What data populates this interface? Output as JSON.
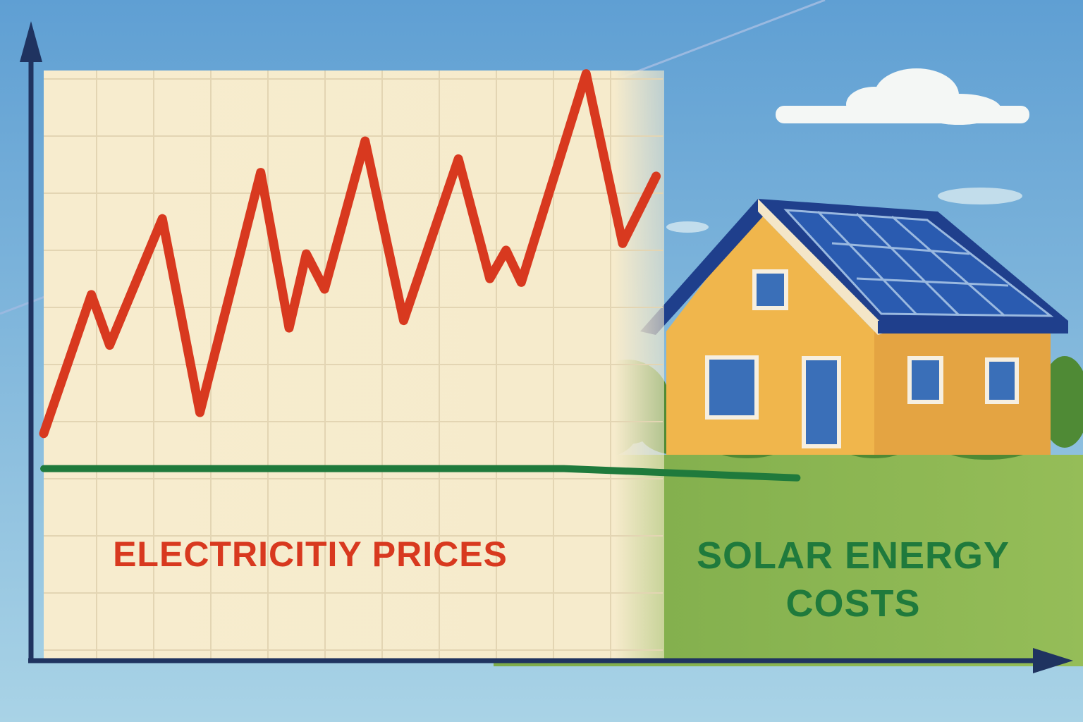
{
  "chart_data": {
    "type": "line",
    "xlim": [
      0,
      100
    ],
    "ylim": [
      0,
      100
    ],
    "series": [
      {
        "name": "ELECTRICITIY PRICES",
        "color": "#d8391f",
        "x": [
          0,
          4.7,
          6.5,
          11.7,
          15.4,
          21.4,
          24.2,
          25.9,
          27.7,
          31.7,
          35.5,
          40.9,
          44.0,
          45.6,
          47.1,
          53.5,
          57.1,
          60.4
        ],
        "values": [
          36.6,
          59.1,
          50.9,
          71.4,
          40.0,
          78.9,
          53.7,
          65.7,
          60.0,
          84.0,
          54.9,
          81.1,
          61.7,
          66.3,
          61.1,
          94.9,
          67.4,
          78.3
        ]
      },
      {
        "name": "SOLAR ENERGY COSTS",
        "color": "#1f7a3c",
        "x": [
          0,
          51.3,
          74.3
        ],
        "values": [
          30.9,
          30.9,
          29.4
        ]
      }
    ]
  }
}
